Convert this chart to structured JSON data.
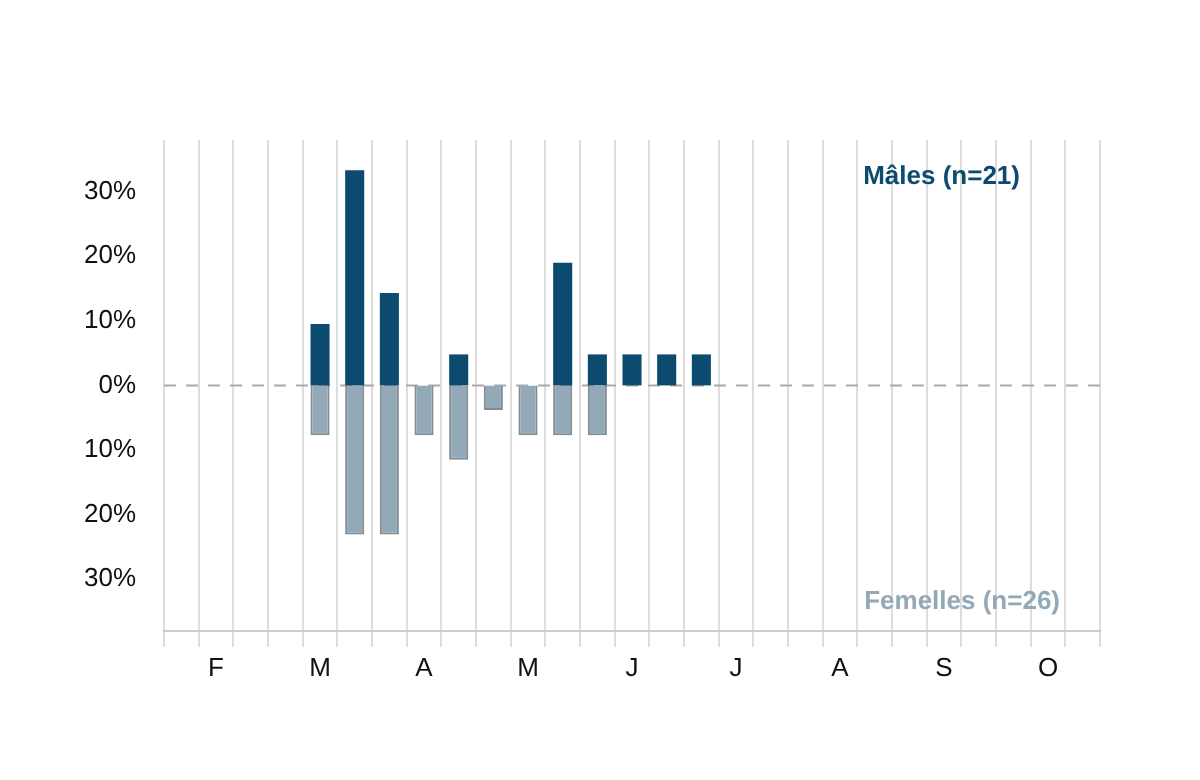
{
  "chart_data": {
    "type": "bar",
    "stacked": true,
    "categories": [
      null,
      "F",
      null,
      null,
      "M",
      null,
      null,
      "A",
      null,
      null,
      "M",
      null,
      null,
      "J",
      null,
      null,
      "J",
      null,
      null,
      "A",
      null,
      null,
      "S",
      null,
      null,
      "O",
      null
    ],
    "series": [
      {
        "name": "Mâles (n=21)",
        "color": "#0d4a70",
        "values": [
          0,
          0,
          0,
          0,
          9.5,
          33.3,
          14.3,
          0,
          4.8,
          0,
          0,
          19,
          4.8,
          4.8,
          4.8,
          4.8,
          0,
          0,
          0,
          0,
          0,
          0,
          0,
          0,
          0,
          0,
          0
        ]
      },
      {
        "name": "Femelles (n=26)",
        "color": "#94a9b8",
        "values": [
          0,
          0,
          0,
          0,
          -7.7,
          -23.1,
          -23.1,
          -7.7,
          -11.5,
          -3.8,
          -7.7,
          -7.7,
          -7.7,
          0,
          0,
          0,
          0,
          0,
          0,
          0,
          0,
          0,
          0,
          0,
          0,
          0,
          0
        ]
      }
    ],
    "ylim": [
      -38,
      38
    ],
    "yticks": [
      {
        "value": -30,
        "label": "30%"
      },
      {
        "value": -20,
        "label": "20%"
      },
      {
        "value": -10,
        "label": "10%"
      },
      {
        "value": 0,
        "label": "0%"
      },
      {
        "value": 10,
        "label": "10%"
      },
      {
        "value": 20,
        "label": "20%"
      },
      {
        "value": 30,
        "label": "30%"
      }
    ],
    "grid": "x",
    "ref_lines": [
      {
        "axis": "y",
        "value": 0,
        "color": "#aaaaaa",
        "line_style": "dashed"
      }
    ]
  }
}
